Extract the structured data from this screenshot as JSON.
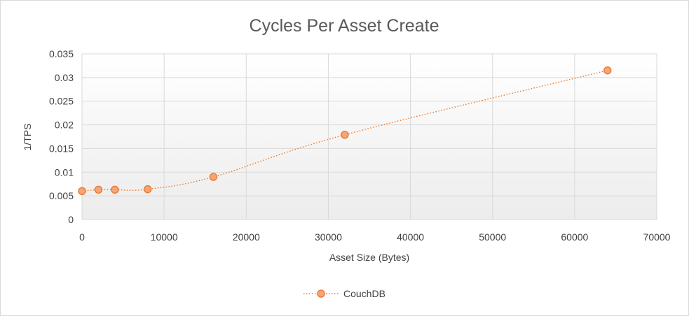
{
  "chart_data": {
    "type": "scatter",
    "title": "Cycles Per Asset Create",
    "xlabel": "Asset Size (Bytes)",
    "ylabel": "1/TPS",
    "xlim": [
      0,
      70000
    ],
    "ylim": [
      0,
      0.035
    ],
    "x_ticks": [
      0,
      10000,
      20000,
      30000,
      40000,
      50000,
      60000,
      70000
    ],
    "y_ticks": [
      0,
      0.005,
      0.01,
      0.015,
      0.02,
      0.025,
      0.03,
      0.035
    ],
    "x_tick_labels": [
      "0",
      "10000",
      "20000",
      "30000",
      "40000",
      "50000",
      "60000",
      "70000"
    ],
    "y_tick_labels": [
      "0",
      "0.005",
      "0.01",
      "0.015",
      "0.02",
      "0.025",
      "0.03",
      "0.035"
    ],
    "grid": true,
    "legend_position": "bottom",
    "series": [
      {
        "name": "CouchDB",
        "color": "#ed7d31",
        "marker_fill": "#f4a57a",
        "line_style": "dotted-smooth",
        "x": [
          0,
          2000,
          4000,
          8000,
          16000,
          32000,
          64000
        ],
        "y": [
          0.006,
          0.0063,
          0.0063,
          0.0064,
          0.009,
          0.0179,
          0.0315
        ]
      }
    ]
  }
}
